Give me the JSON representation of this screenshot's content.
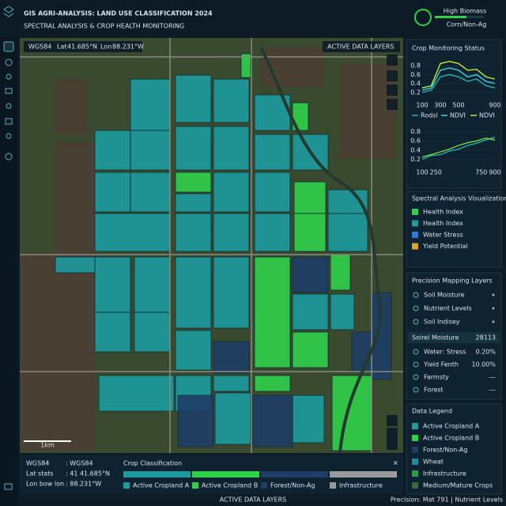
{
  "header": {
    "title": "GIS AGRI-ANALYSIS: LAND USE CLASSIFICATION 2024",
    "subtitle": "SPECTRAL ANALYSIS & CROP HEALTH MONITORING",
    "badge": {
      "label": "High Biomass",
      "sublabel": "Corn/Non-Ag"
    }
  },
  "map": {
    "toolbar": {
      "crs": "WGS84",
      "lat_label": "Lat",
      "lat": "41.685°N",
      "lon_label": "Lon",
      "lon": "88.231°W",
      "layers_button": "ACTIVE DATA LAYERS"
    },
    "scale": "1km"
  },
  "coords": {
    "rows": [
      [
        "WGS84",
        ": WGS84"
      ],
      [
        "Lat stats",
        ": 41 41.685°N"
      ],
      [
        "Lon bow lon",
        ": 88.231°W"
      ]
    ]
  },
  "crop_classification": {
    "title": "Crop Classification",
    "items": [
      {
        "label": "Active Cropland A",
        "color": "#1d9a9e"
      },
      {
        "label": "Active Cropland B",
        "color": "#2fd14a"
      },
      {
        "label": "Forest/Non-Ag",
        "color": "#1e3d66"
      },
      {
        "label": "Infrastructure",
        "color": "#9a9a9a"
      }
    ]
  },
  "footer": {
    "center": "ACTIVE DATA LAYERS",
    "right": "Precision: Mat 791 | Nutrient Levels"
  },
  "crop_monitoring": {
    "title": "Crop Monitoring Status",
    "charts": [
      {
        "type": "line",
        "x": [
          100,
          200,
          300,
          400,
          500,
          600,
          700,
          800,
          900
        ],
        "xlim": [
          100,
          900
        ],
        "xticks": [
          100,
          300,
          500,
          900
        ],
        "ylim": [
          0,
          1
        ],
        "yticks": [
          0.2,
          0.4,
          0.6,
          0.8
        ],
        "series": [
          {
            "name": "Rodsl",
            "color": "#1fb5b0",
            "values": [
              0.2,
              0.25,
              0.55,
              0.6,
              0.55,
              0.45,
              0.5,
              0.35,
              0.3
            ]
          },
          {
            "name": "NDVI",
            "color": "#3fd0e0",
            "values": [
              0.25,
              0.3,
              0.7,
              0.75,
              0.7,
              0.55,
              0.6,
              0.45,
              0.4
            ]
          },
          {
            "name": "NDVI",
            "color": "#c8e63c",
            "values": [
              0.3,
              0.35,
              0.85,
              0.9,
              0.85,
              0.7,
              0.72,
              0.55,
              0.5
            ]
          }
        ]
      },
      {
        "type": "line",
        "x": [
          100,
          200,
          300,
          400,
          500,
          600,
          700,
          800,
          900
        ],
        "xlim": [
          100,
          900
        ],
        "xticks": [
          100,
          250,
          750,
          900
        ],
        "ylim": [
          0,
          1
        ],
        "yticks": [
          0.2,
          0.4,
          0.6,
          0.8
        ],
        "series": [
          {
            "color": "#1fb5b0",
            "values": [
              0.2,
              0.28,
              0.3,
              0.38,
              0.42,
              0.5,
              0.55,
              0.62,
              0.68
            ]
          },
          {
            "color": "#7ad94a",
            "values": [
              0.25,
              0.3,
              0.36,
              0.42,
              0.5,
              0.56,
              0.6,
              0.66,
              0.62
            ]
          }
        ]
      }
    ]
  },
  "spectral": {
    "title": "Spectral Analysis Visualization",
    "items": [
      {
        "label": "Health Index",
        "color": "#2fd14a"
      },
      {
        "label": "Health Index",
        "color": "#1d9a9e"
      },
      {
        "label": "Water Stress",
        "color": "#2a7be0"
      },
      {
        "label": "Yield Potential",
        "color": "#e0a030"
      }
    ]
  },
  "precision_layers": {
    "title": "Precision Mapping Layers",
    "layers": [
      "Soil Moisture",
      "Nutrient Levels",
      "Soil Indisey"
    ],
    "summary": {
      "label": "Soirel Moisture",
      "value": "28113"
    },
    "metrics": [
      {
        "label": "Water: Stress",
        "value": "0.20%"
      },
      {
        "label": "Yield Fenth",
        "value": "10.00%"
      },
      {
        "label": "Farmsty",
        "value": "---"
      },
      {
        "label": "Forest",
        "value": "---"
      }
    ]
  },
  "data_legend": {
    "title": "Data Legend",
    "items": [
      {
        "label": "Active Cropland A",
        "color": "#1d9a9e"
      },
      {
        "label": "Active Cropland B",
        "color": "#2fd14a"
      },
      {
        "label": "Forest/Non-Ag",
        "color": "#1e3d66"
      },
      {
        "label": "Wheat",
        "color": "#1f8a9a"
      },
      {
        "label": "Infrastructure",
        "color": "#2e9a4a"
      },
      {
        "label": "Medium/Mature Crops",
        "color": "#3a6a3a"
      }
    ]
  }
}
